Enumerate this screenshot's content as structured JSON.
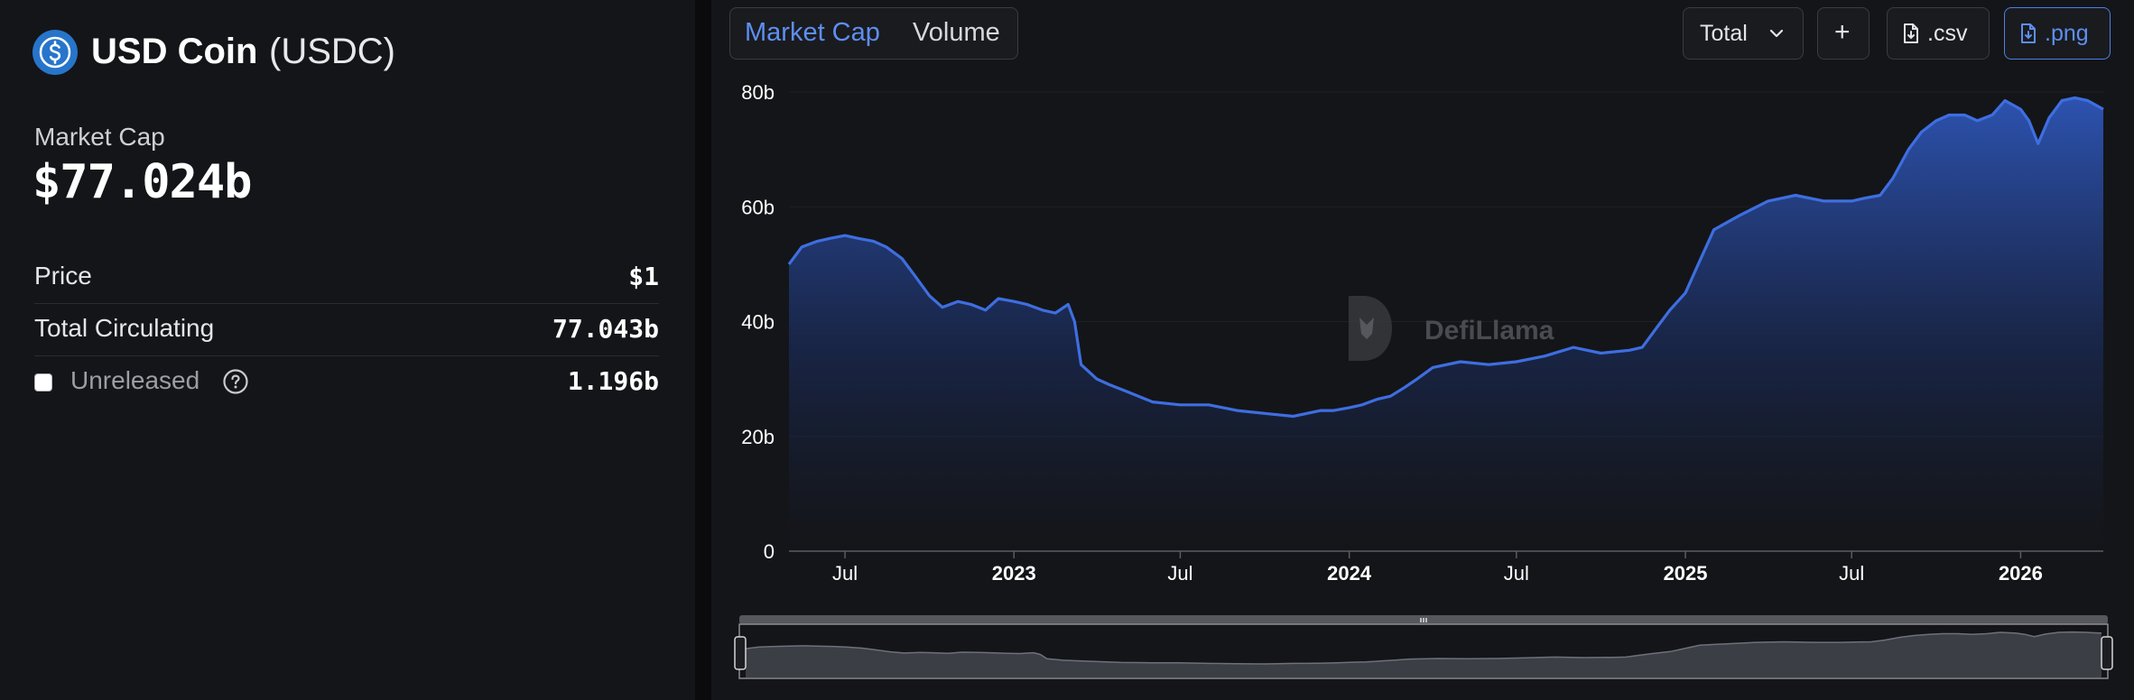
{
  "coin": {
    "name": "USD Coin",
    "symbol": "(USDC)"
  },
  "market_cap": {
    "label": "Market Cap",
    "value": "$77.024b"
  },
  "stats": {
    "price": {
      "label": "Price",
      "value": "$1"
    },
    "total_circulating": {
      "label": "Total Circulating",
      "value": "77.043b"
    },
    "unreleased": {
      "label": "Unreleased",
      "value": "1.196b",
      "checked": false
    }
  },
  "tabs": [
    {
      "label": "Market Cap",
      "active": true
    },
    {
      "label": "Volume",
      "active": false
    }
  ],
  "controls": {
    "total_label": "Total",
    "plus_label": "+",
    "csv_label": ".csv",
    "png_label": ".png"
  },
  "watermark": "DefiLlama",
  "colors": {
    "accent": "#5d8ff0",
    "line": "#3e6ee0",
    "background": "#141518"
  },
  "chart_data": {
    "type": "area",
    "ylim": [
      0,
      80
    ],
    "y_ticks": [
      "0",
      "20b",
      "40b",
      "60b",
      "80b"
    ],
    "x_ticks": [
      {
        "label": "Jul",
        "date": "2022-07-01",
        "bold": false
      },
      {
        "label": "2023",
        "date": "2023-01-01",
        "bold": true
      },
      {
        "label": "Jul",
        "date": "2023-07-01",
        "bold": false
      },
      {
        "label": "2024",
        "date": "2024-01-01",
        "bold": true
      },
      {
        "label": "Jul",
        "date": "2024-07-01",
        "bold": false
      },
      {
        "label": "2025",
        "date": "2025-01-01",
        "bold": true
      },
      {
        "label": "Jul",
        "date": "2025-07-01",
        "bold": false
      },
      {
        "label": "2026",
        "date": "2026-01-01",
        "bold": true
      }
    ],
    "xlim": [
      "2022-05-01",
      "2026-04-01"
    ],
    "series": [
      {
        "x": [
          "2022-05-01",
          "2022-05-15",
          "2022-06-01",
          "2022-06-15",
          "2022-07-01",
          "2022-07-15",
          "2022-08-01",
          "2022-08-15",
          "2022-09-01",
          "2022-09-15",
          "2022-10-01",
          "2022-10-15",
          "2022-11-01",
          "2022-11-15",
          "2022-12-01",
          "2022-12-15",
          "2023-01-01",
          "2023-01-15",
          "2023-02-01",
          "2023-02-15",
          "2023-03-01",
          "2023-03-08",
          "2023-03-15",
          "2023-04-01",
          "2023-04-15",
          "2023-05-01",
          "2023-06-01",
          "2023-07-01",
          "2023-08-01",
          "2023-09-01",
          "2023-10-01",
          "2023-11-01",
          "2023-12-01",
          "2023-12-15",
          "2024-01-01",
          "2024-01-15",
          "2024-02-01",
          "2024-02-15",
          "2024-03-01",
          "2024-03-15",
          "2024-04-01",
          "2024-05-01",
          "2024-06-01",
          "2024-07-01",
          "2024-08-01",
          "2024-09-01",
          "2024-10-01",
          "2024-11-01",
          "2024-11-15",
          "2024-12-01",
          "2024-12-15",
          "2025-01-01",
          "2025-01-15",
          "2025-02-01",
          "2025-03-01",
          "2025-04-01",
          "2025-05-01",
          "2025-06-01",
          "2025-07-01",
          "2025-07-15",
          "2025-08-01",
          "2025-08-15",
          "2025-09-01",
          "2025-09-15",
          "2025-10-01",
          "2025-10-15",
          "2025-11-01",
          "2025-11-15",
          "2025-12-01",
          "2025-12-15",
          "2026-01-01",
          "2026-01-10",
          "2026-01-20",
          "2026-02-01",
          "2026-02-15",
          "2026-03-01",
          "2026-03-15",
          "2026-04-01"
        ],
        "y": [
          50,
          53,
          54,
          54.5,
          55,
          54.5,
          54,
          53,
          51,
          48,
          44.5,
          42.5,
          43.5,
          43,
          42,
          44,
          43.5,
          43,
          42,
          41.5,
          43,
          40,
          32.5,
          30,
          29,
          28,
          26,
          25.5,
          25.5,
          24.5,
          24,
          23.5,
          24.5,
          24.5,
          25,
          25.5,
          26.5,
          27,
          28.5,
          30,
          32,
          33,
          32.5,
          33,
          34,
          35.5,
          34.5,
          35,
          35.5,
          39,
          42,
          45,
          50,
          56,
          58.5,
          61,
          62,
          61,
          61,
          61.5,
          62,
          65,
          70,
          73,
          75,
          76,
          76,
          75,
          76,
          78.5,
          77,
          75,
          71,
          75.5,
          78.5,
          79,
          78.5,
          77
        ]
      }
    ]
  }
}
